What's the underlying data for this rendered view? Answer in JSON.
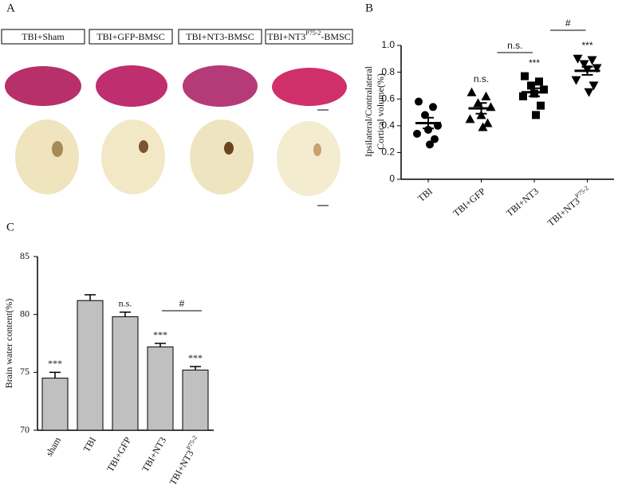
{
  "panel_a": {
    "panel_label": "A",
    "labels": [
      {
        "text": "TBI+Sham"
      },
      {
        "text": "TBI+GFP-BMSC"
      },
      {
        "text": "TBI+NT3-BMSC"
      },
      {
        "text": "TBI+NT3",
        "sup": "P75-2",
        "tail": "-BMSC"
      }
    ]
  },
  "chart_data": [
    {
      "type": "dot",
      "panel_label": "B",
      "ylabel": [
        "Ipsilateral/Contralateral",
        "Cortical volume(%)"
      ],
      "categories": [
        "TBI",
        "TBI+GFP",
        "TBI+NT3",
        "TBI+NT3"
      ],
      "category_superscripts": [
        null,
        null,
        null,
        "P75-2"
      ],
      "ylim": [
        0,
        1.0
      ],
      "yticks": [
        0,
        0.2,
        0.4,
        0.6,
        0.8,
        {
          "value": 1.0,
          "label": "1.0"
        }
      ],
      "color": "#000000",
      "groups": [
        {
          "marker": "circle",
          "values": [
            0.58,
            0.54,
            0.48,
            0.4,
            0.37,
            0.34,
            0.3,
            0.26
          ],
          "mean": 0.42,
          "sem": 0.04,
          "annotation": null
        },
        {
          "marker": "triangle",
          "values": [
            0.65,
            0.62,
            0.57,
            0.54,
            0.48,
            0.45,
            0.42,
            0.39
          ],
          "mean": 0.53,
          "sem": 0.04,
          "annotation": "n.s."
        },
        {
          "marker": "square",
          "values": [
            0.77,
            0.73,
            0.7,
            0.67,
            0.64,
            0.62,
            0.55,
            0.48
          ],
          "mean": 0.65,
          "sem": 0.03,
          "annotation": "***"
        },
        {
          "marker": "triangle-down",
          "values": [
            0.9,
            0.89,
            0.86,
            0.83,
            0.82,
            0.74,
            0.7,
            0.65
          ],
          "mean": 0.81,
          "sem": 0.03,
          "annotation": "***"
        }
      ],
      "brackets": [
        {
          "from": 1,
          "to": 2,
          "label": "n.s."
        },
        {
          "from": 2,
          "to": 3,
          "label": "#"
        }
      ]
    },
    {
      "type": "bar",
      "panel_label": "C",
      "ylabel": "Brain water content(%)",
      "categories": [
        "sham",
        "TBI",
        "TBI+GFP",
        "TBI+NT3",
        "TBI+NT3"
      ],
      "category_superscripts": [
        null,
        null,
        null,
        null,
        "P75-2"
      ],
      "ylim": [
        70,
        85
      ],
      "yticks": [
        70,
        75,
        80,
        85
      ],
      "color": "#c0c0c0",
      "values": [
        74.5,
        81.2,
        79.8,
        77.2,
        75.2
      ],
      "errors": [
        0.5,
        0.5,
        0.4,
        0.3,
        0.3
      ],
      "annotations": [
        "***",
        null,
        "n.s.",
        "***",
        "***"
      ],
      "brackets": [
        {
          "from": 3,
          "to": 4,
          "label": "#"
        }
      ]
    }
  ]
}
